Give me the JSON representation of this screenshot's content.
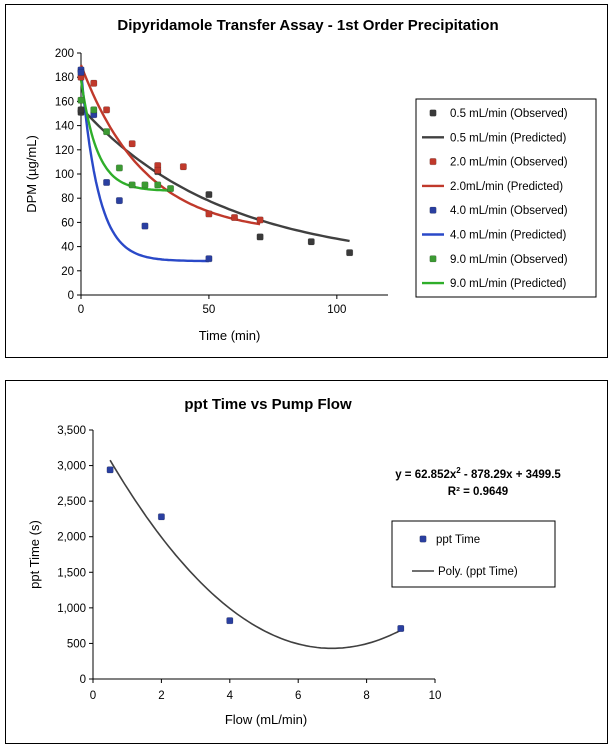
{
  "chart_data": [
    {
      "type": "scatter",
      "title": "Dipyridamole Transfer Assay - 1st Order Precipitation",
      "xlabel": "Time  (min)",
      "ylabel": "DPM (µg/mL)",
      "xlim": [
        0,
        120
      ],
      "ylim": [
        0,
        200
      ],
      "xticks": [
        0,
        50,
        100
      ],
      "yticks": [
        0,
        20,
        40,
        60,
        80,
        100,
        120,
        140,
        160,
        180,
        200
      ],
      "legend_position": "right",
      "series": [
        {
          "name": "0.5  mL/min  (Observed)",
          "kind": "points",
          "color": "#3a3a3a",
          "points": [
            [
              0,
              151
            ],
            [
              0,
              153
            ],
            [
              30,
              102
            ],
            [
              50,
              83
            ],
            [
              70,
              48
            ],
            [
              90,
              44
            ],
            [
              105,
              35
            ]
          ]
        },
        {
          "name": "0.5  mL/min  (Predicted)",
          "kind": "curve",
          "color": "#404040",
          "model": {
            "c0": 155,
            "cinf": 25,
            "k": 0.018,
            "x0": 0,
            "x1": 105
          }
        },
        {
          "name": "2.0  mL/min  (Observed)",
          "kind": "points",
          "color": "#c0392b",
          "points": [
            [
              0,
              180
            ],
            [
              5,
              175
            ],
            [
              10,
              153
            ],
            [
              20,
              125
            ],
            [
              30,
              107
            ],
            [
              30,
              103
            ],
            [
              40,
              106
            ],
            [
              50,
              67
            ],
            [
              60,
              64
            ],
            [
              70,
              62
            ]
          ]
        },
        {
          "name": "2.0mL/min   (Predicted)",
          "kind": "curve",
          "color": "#c0392b",
          "model": {
            "c0": 190,
            "cinf": 50,
            "k": 0.04,
            "x0": 0,
            "x1": 70
          }
        },
        {
          "name": "4.0  mL/min  (Observed)",
          "kind": "points",
          "color": "#2a3fa0",
          "points": [
            [
              0,
              186
            ],
            [
              0,
              184
            ],
            [
              5,
              149
            ],
            [
              10,
              93
            ],
            [
              15,
              78
            ],
            [
              25,
              57
            ],
            [
              50,
              30
            ]
          ]
        },
        {
          "name": "4.0  mL/min  (Predicted)",
          "kind": "curve",
          "color": "#2a49c8",
          "model": {
            "c0": 186,
            "cinf": 28,
            "k": 0.15,
            "x0": 0,
            "x1": 50
          }
        },
        {
          "name": "9.0  mL/min  (Observed)",
          "kind": "points",
          "color": "#3c9a33",
          "points": [
            [
              0,
              161
            ],
            [
              5,
              153
            ],
            [
              10,
              135
            ],
            [
              15,
              105
            ],
            [
              20,
              91
            ],
            [
              25,
              91
            ],
            [
              30,
              91
            ],
            [
              35,
              88
            ]
          ]
        },
        {
          "name": "9.0  mL/min  (Predicted)",
          "kind": "curve",
          "color": "#2fae2a",
          "model": {
            "c0": 178,
            "cinf": 86,
            "k": 0.16,
            "x0": 0,
            "x1": 35
          }
        }
      ]
    },
    {
      "type": "scatter",
      "title": "ppt Time vs Pump Flow",
      "xlabel": "Flow (mL/min)",
      "ylabel": "ppt Time (s)",
      "xlim": [
        0,
        10
      ],
      "ylim": [
        0,
        3500
      ],
      "xticks": [
        0,
        2,
        4,
        6,
        8,
        10
      ],
      "yticks": [
        0,
        500,
        1000,
        1500,
        2000,
        2500,
        3000,
        3500
      ],
      "ytick_labels": [
        "0",
        "500",
        "1,000",
        "1,500",
        "2,000",
        "2,500",
        "3,000",
        "3,500"
      ],
      "legend_position": "right",
      "equation_parts": [
        "y = 62.852x",
        "2",
        " - 878.29x + 3499.5"
      ],
      "r_squared": "R² = 0.9649",
      "series": [
        {
          "name": "ppt Time",
          "kind": "points",
          "color": "#2a3fa0",
          "points": [
            [
              0.5,
              2940
            ],
            [
              2,
              2280
            ],
            [
              4,
              820
            ],
            [
              9,
              710
            ]
          ]
        },
        {
          "name": "Poly. (ppt Time)",
          "kind": "poly",
          "color": "#404040",
          "coeffs": [
            62.852,
            -878.29,
            3499.5
          ],
          "x0": 0.5,
          "x1": 9
        }
      ]
    }
  ]
}
